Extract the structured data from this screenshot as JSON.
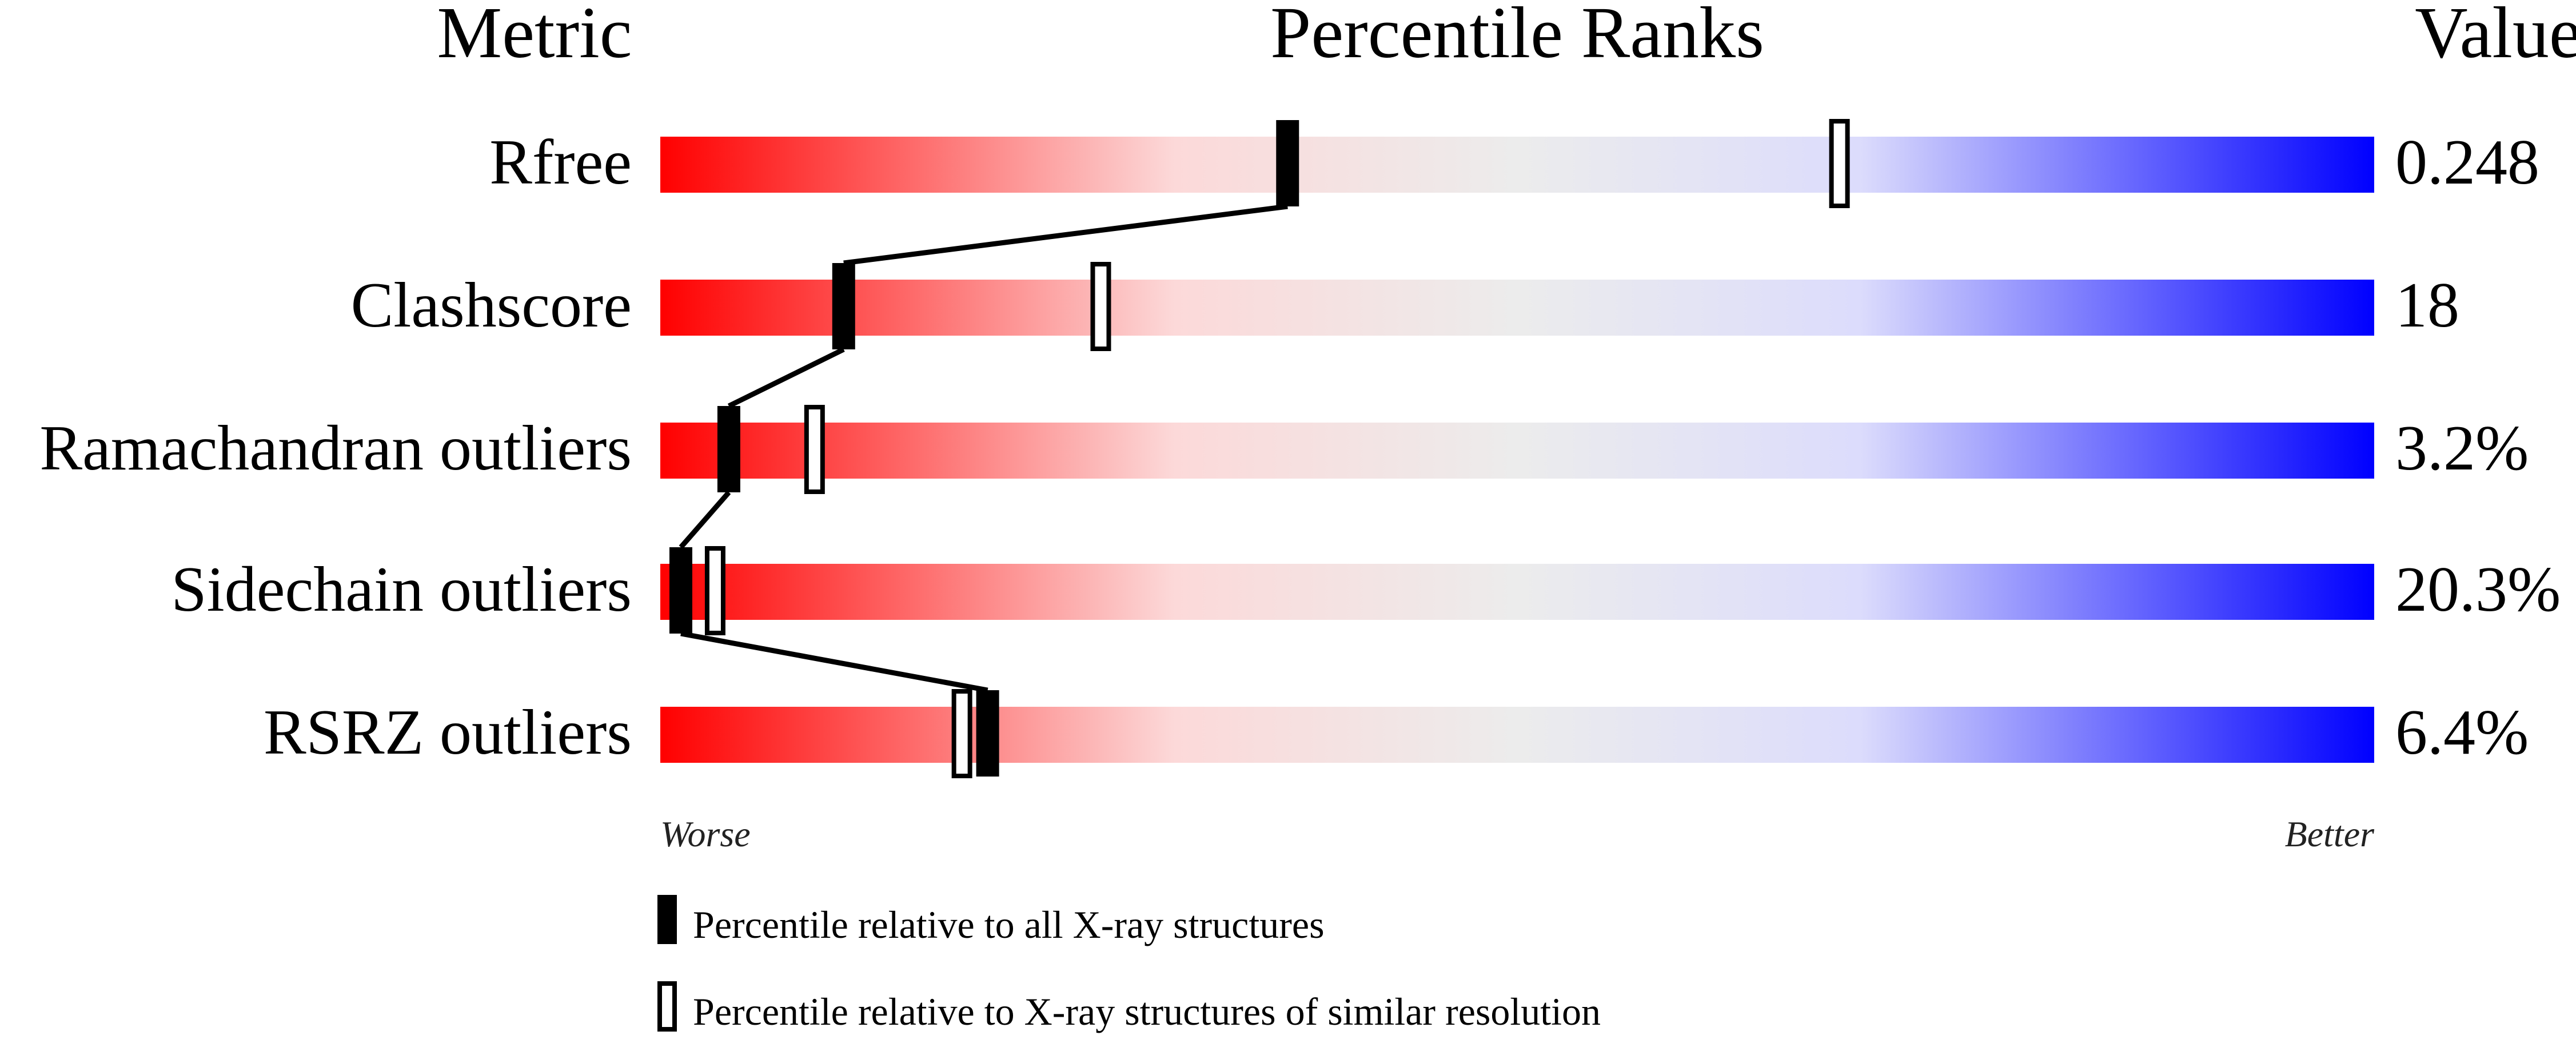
{
  "chart_data": {
    "type": "percentile-slider",
    "headers": {
      "metric": "Metric",
      "ranks": "Percentile Ranks",
      "value": "Value"
    },
    "xlim": [
      0,
      100
    ],
    "scale_left_label": "Worse",
    "scale_right_label": "Better",
    "gradient_colors": [
      "#ff0000",
      "#fcd9d9",
      "#ececec",
      "#dcdcfc",
      "#0000ff"
    ],
    "metrics": [
      {
        "name": "Rfree",
        "value": "0.248",
        "percentile_all": 36.6,
        "percentile_similar": 68.8
      },
      {
        "name": "Clashscore",
        "value": "18",
        "percentile_all": 10.7,
        "percentile_similar": 25.7
      },
      {
        "name": "Ramachandran outliers",
        "value": "3.2%",
        "percentile_all": 4.0,
        "percentile_similar": 9.0
      },
      {
        "name": "Sidechain outliers",
        "value": "20.3%",
        "percentile_all": 1.2,
        "percentile_similar": 3.2
      },
      {
        "name": "RSRZ outliers",
        "value": "6.4%",
        "percentile_all": 19.1,
        "percentile_similar": 17.6
      }
    ],
    "legend": [
      {
        "marker": "filled",
        "label": "Percentile relative to all X-ray structures"
      },
      {
        "marker": "open",
        "label": "Percentile relative to X-ray structures of similar resolution"
      }
    ]
  }
}
